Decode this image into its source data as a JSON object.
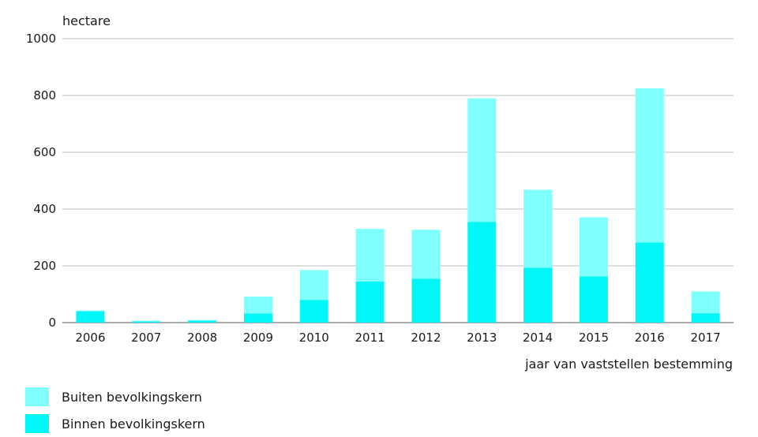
{
  "chart_data": {
    "type": "bar",
    "stacked": true,
    "ylabel": "hectare",
    "xlabel": "jaar van vaststellen bestemming",
    "ylim": [
      0,
      1000
    ],
    "yticks": [
      "0",
      "200",
      "400",
      "600",
      "800",
      "1000"
    ],
    "grid": true,
    "legend_position": "bottom-left",
    "categories": [
      "2006",
      "2007",
      "2008",
      "2009",
      "2010",
      "2011",
      "2012",
      "2013",
      "2014",
      "2015",
      "2016",
      "2017"
    ],
    "series": [
      {
        "name": "Binnen bevolkingskern",
        "color": "#00f7f7",
        "values": [
          40,
          4,
          7,
          32,
          80,
          145,
          155,
          355,
          193,
          163,
          282,
          33
        ]
      },
      {
        "name": "Buiten bevolkingskern",
        "color": "#80ffff",
        "values": [
          3,
          3,
          2,
          60,
          105,
          185,
          172,
          435,
          275,
          208,
          543,
          77
        ]
      }
    ]
  },
  "legend": {
    "items": [
      {
        "label": "Buiten bevolkingskern",
        "color": "#80ffff"
      },
      {
        "label": "Binnen bevolkingskern",
        "color": "#00f7f7"
      }
    ]
  }
}
